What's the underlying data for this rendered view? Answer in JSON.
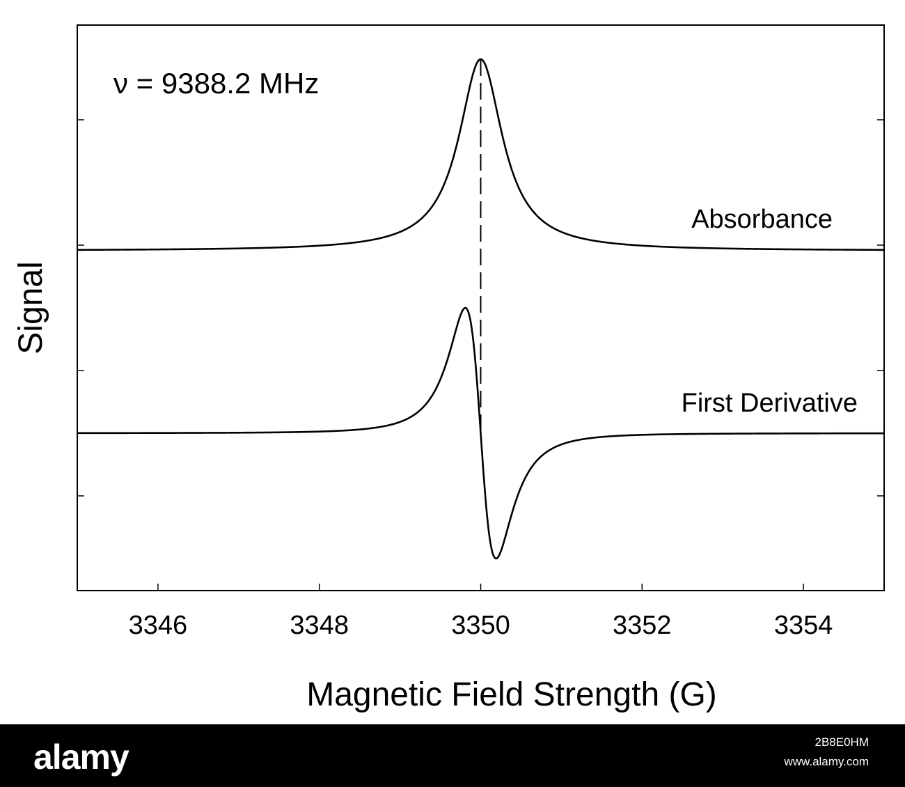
{
  "chart_data": {
    "type": "line",
    "title": "",
    "xlabel": "Magnetic Field Strength (G)",
    "ylabel": "Signal",
    "xlim": [
      3345,
      3355
    ],
    "x_ticks": [
      3346,
      3348,
      3350,
      3352,
      3354
    ],
    "x_tick_labels": [
      "3346",
      "3348",
      "3350",
      "3352",
      "3354"
    ],
    "y_tick_labels_shown": false,
    "grid": false,
    "line_color": "#000000",
    "annotations": [
      {
        "text": "ν = 9388.2 MHz",
        "position": "top-left"
      },
      {
        "text": "Absorbance",
        "position": "right of upper trace"
      },
      {
        "text": "First Derivative",
        "position": "right of lower trace"
      }
    ],
    "reference_line": {
      "x": 3350,
      "style": "dashed"
    },
    "series": [
      {
        "name": "Absorbance",
        "shape": "lorentzian",
        "center": 3350.0,
        "hwhm": 0.33,
        "x": [
          3345,
          3346,
          3347,
          3348,
          3349,
          3349.5,
          3350,
          3350.5,
          3351,
          3352,
          3353,
          3354,
          3355
        ],
        "y": [
          0.004,
          0.007,
          0.012,
          0.026,
          0.098,
          0.3,
          1.0,
          0.3,
          0.098,
          0.026,
          0.012,
          0.007,
          0.004
        ]
      },
      {
        "name": "First Derivative",
        "shape": "lorentzian-derivative",
        "center": 3350.0,
        "hwhm": 0.33,
        "x": [
          3345,
          3346,
          3347,
          3348,
          3349,
          3349.5,
          3349.7,
          3350,
          3350.3,
          3350.5,
          3351,
          3352,
          3353,
          3354,
          3355
        ],
        "y": [
          0.0,
          0.0,
          0.01,
          0.03,
          0.18,
          0.72,
          1.0,
          0.0,
          -1.0,
          -0.72,
          -0.18,
          -0.03,
          -0.01,
          0.0,
          0.0
        ]
      }
    ]
  },
  "watermark": {
    "logo": "alamy",
    "image_id": "2B8E0HM",
    "url": "www.alamy.com"
  }
}
